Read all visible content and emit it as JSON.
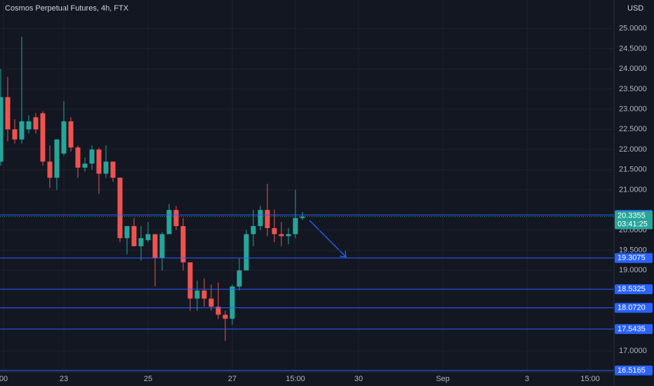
{
  "chart_data": {
    "type": "candlestick",
    "title": "Cosmos Perpetual Futures, 4h, FTX",
    "currency": "USD",
    "up_color": "#26a69a",
    "down_color": "#ef5350",
    "open": [
      21.7,
      23.3,
      22.5,
      22.25,
      22.5,
      22.8,
      22.9,
      21.7,
      21.3,
      21.9,
      22.7,
      22.05,
      21.55,
      21.65,
      22.0,
      21.4,
      21.7,
      21.3,
      19.8,
      20.1,
      19.6,
      19.75,
      19.9,
      19.3,
      19.9,
      20.5,
      20.1,
      19.2,
      18.3,
      18.5,
      18.3,
      18.1,
      17.9,
      17.8,
      18.6,
      19.0,
      19.9,
      20.1,
      20.5,
      20.05,
      19.9,
      19.85,
      19.9,
      20.3
    ],
    "high": [
      24.0,
      23.8,
      22.75,
      24.8,
      22.85,
      22.9,
      22.95,
      22.1,
      22.25,
      23.2,
      22.8,
      22.1,
      21.8,
      22.1,
      22.05,
      22.1,
      21.7,
      21.3,
      20.1,
      20.3,
      20.1,
      20.2,
      19.9,
      19.95,
      20.65,
      20.6,
      20.3,
      19.2,
      18.75,
      18.8,
      18.65,
      18.7,
      18.0,
      18.65,
      19.3,
      20.0,
      20.5,
      20.6,
      21.15,
      20.5,
      20.2,
      20.05,
      21.0,
      20.45
    ],
    "low": [
      21.6,
      22.2,
      22.15,
      22.15,
      22.4,
      22.4,
      21.6,
      21.05,
      21.0,
      21.85,
      21.95,
      21.3,
      21.45,
      21.5,
      20.9,
      21.3,
      21.2,
      19.7,
      19.4,
      19.6,
      19.25,
      19.7,
      18.6,
      19.0,
      19.9,
      20.0,
      19.0,
      18.0,
      18.0,
      18.1,
      18.0,
      17.8,
      17.25,
      17.65,
      18.5,
      19.0,
      19.6,
      20.0,
      19.85,
      19.7,
      19.6,
      19.65,
      19.8,
      20.25
    ],
    "close": [
      23.3,
      22.5,
      22.25,
      22.7,
      22.7,
      22.5,
      21.7,
      21.3,
      22.25,
      22.7,
      22.05,
      21.55,
      21.65,
      22.0,
      21.4,
      21.7,
      21.3,
      19.8,
      20.1,
      19.6,
      19.8,
      19.9,
      19.3,
      19.9,
      20.5,
      20.1,
      19.2,
      18.3,
      18.5,
      18.3,
      18.1,
      17.9,
      17.8,
      18.6,
      19.0,
      19.9,
      20.1,
      20.5,
      20.05,
      19.9,
      19.85,
      19.9,
      20.3,
      20.3355
    ],
    "xlim": [
      -0.1,
      87.4
    ],
    "xticks": [
      {
        "value": 0.4,
        "label": "00"
      },
      {
        "value": 9,
        "label": "23"
      },
      {
        "value": 21,
        "label": "25"
      },
      {
        "value": 33,
        "label": "27"
      },
      {
        "value": 42,
        "label": "15:00"
      },
      {
        "value": 51,
        "label": "30"
      },
      {
        "value": 63,
        "label": "Sep"
      },
      {
        "value": 75,
        "label": "3"
      },
      {
        "value": 84,
        "label": "15:00"
      }
    ],
    "ylim": [
      16.48,
      25.71
    ],
    "yticks": [
      {
        "value": 17,
        "label": "17.0000"
      },
      {
        "value": 19,
        "label": "19.0000"
      },
      {
        "value": 19.5,
        "label": "19.5000"
      },
      {
        "value": 20,
        "label": "20.0000"
      },
      {
        "value": 21,
        "label": "21.0000"
      },
      {
        "value": 21.5,
        "label": "21.5000"
      },
      {
        "value": 22,
        "label": "22.0000"
      },
      {
        "value": 22.5,
        "label": "22.5000"
      },
      {
        "value": 23,
        "label": "23.0000"
      },
      {
        "value": 23.5,
        "label": "23.5000"
      },
      {
        "value": 24,
        "label": "24.0000"
      },
      {
        "value": 24.5,
        "label": "24.5000"
      },
      {
        "value": 25,
        "label": "25.0000"
      }
    ],
    "grid": true,
    "levels": [
      20.3765,
      19.3075,
      18.5325,
      {
        "value": 18.072,
        "label": "18.0720"
      },
      17.5435,
      16.5165
    ],
    "level_color": "#2962ff",
    "last_price": 20.3355,
    "countdown": "03:41:25"
  }
}
